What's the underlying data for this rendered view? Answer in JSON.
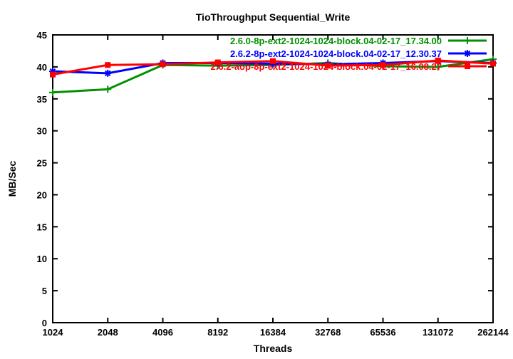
{
  "chart_data": {
    "type": "line",
    "title": "TioThroughput Sequential_Write",
    "xlabel": "Threads",
    "ylabel": "MB/Sec",
    "x_scale": "log2-categorical",
    "x_ticks": [
      1024,
      2048,
      4096,
      8192,
      16384,
      32768,
      65536,
      131072,
      262144
    ],
    "x_tick_labels": [
      "1024",
      "2048",
      "4096",
      "8192",
      "16384",
      "32768",
      "65536",
      "131072",
      "262144"
    ],
    "ylim": [
      0,
      45
    ],
    "y_tick_step": 5,
    "grid": false,
    "legend_position": "top-right-inside",
    "axis_color": "#000000",
    "series": [
      {
        "name": "2.6.0-8p-ext2-1024-1024-block.04-02-17_17.34.00",
        "color": "#009000",
        "marker": "plus",
        "values": [
          36.0,
          36.5,
          40.3,
          40.2,
          40.3,
          40.6,
          40.1,
          40.0,
          41.2
        ]
      },
      {
        "name": "2.6.2-8p-ext2-1024-1024-block.04-02-17_12.30.37",
        "color": "#0000ff",
        "marker": "asterisk",
        "values": [
          39.3,
          39.0,
          40.6,
          40.6,
          40.5,
          40.4,
          40.6,
          40.9,
          40.6
        ]
      },
      {
        "name": "2.6.2-aop-8p-ext2-1024-1024-block.04-02-17_16.08.27",
        "color": "#ff0000",
        "marker": "square",
        "values": [
          38.8,
          40.3,
          40.4,
          40.7,
          40.9,
          40.2,
          40.3,
          41.0,
          40.5
        ]
      }
    ]
  }
}
